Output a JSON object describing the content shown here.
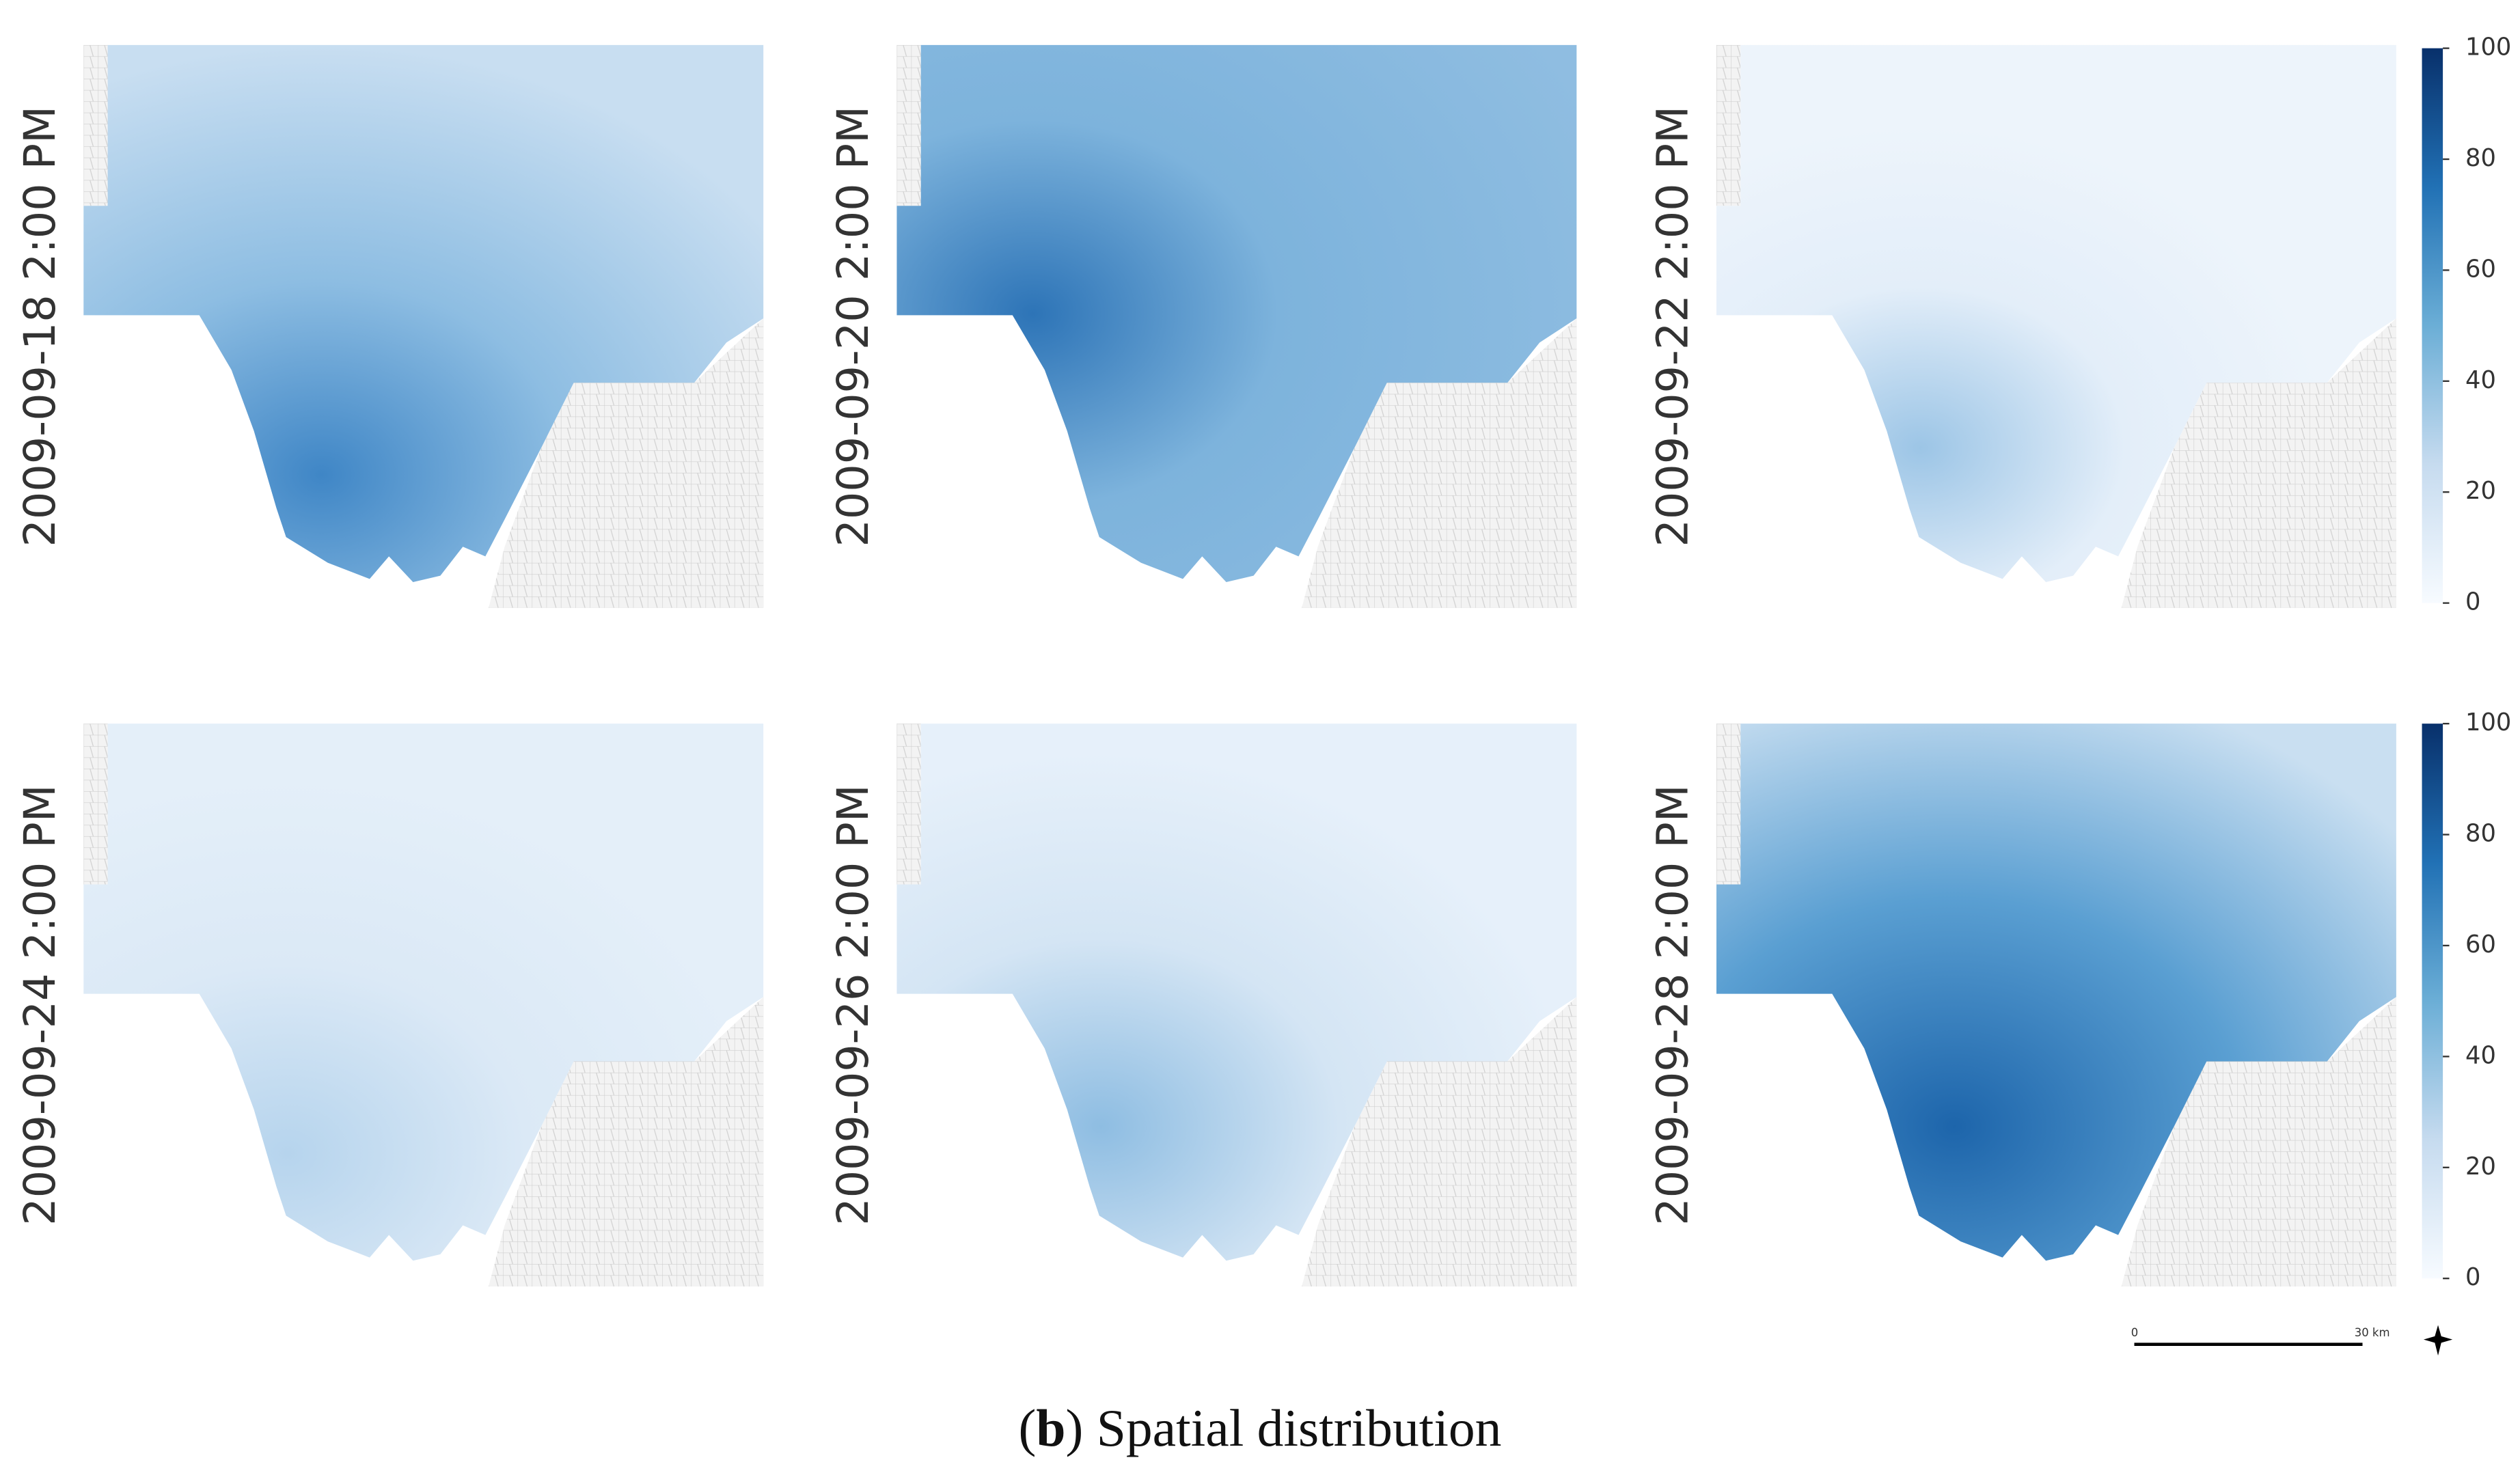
{
  "panels": [
    {
      "label": "2009-09-18 2:00 PM"
    },
    {
      "label": "2009-09-20 2:00 PM"
    },
    {
      "label": "2009-09-22 2:00 PM"
    },
    {
      "label": "2009-09-24 2:00 PM"
    },
    {
      "label": "2009-09-26 2:00 PM"
    },
    {
      "label": "2009-09-28 2:00 PM"
    }
  ],
  "colorbars": [
    {
      "ticks": [
        0,
        20,
        40,
        60,
        80,
        100
      ]
    },
    {
      "ticks": [
        0,
        20,
        40,
        60,
        80,
        100
      ]
    }
  ],
  "scale_bar": {
    "start": "0",
    "end": "30 km"
  },
  "caption": {
    "open": "(",
    "bold": "b",
    "text": ") Spatial distribution"
  }
}
